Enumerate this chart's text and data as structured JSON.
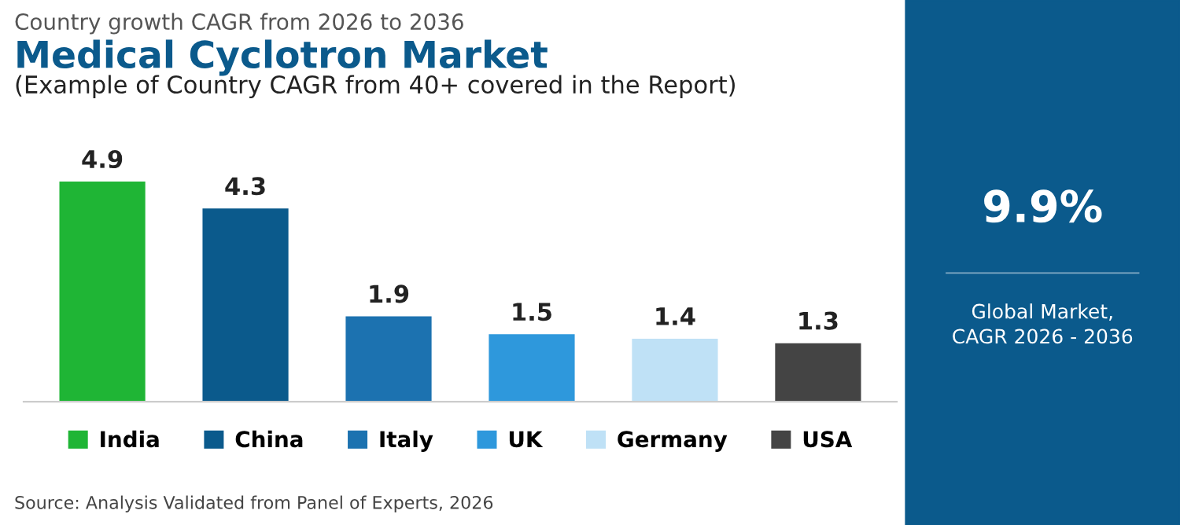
{
  "chart_data": [
    {
      "type": "bar",
      "title": "Medical Cyclotron Market",
      "subtitle": "(Example of Country CAGR from 40+ covered in the Report)",
      "categories": [
        null,
        null,
        null,
        null,
        null,
        null
      ],
      "series": [
        {
          "name": "India",
          "color": "#1fb535",
          "values": [
            4.9,
            null,
            null,
            null,
            null,
            null
          ]
        },
        {
          "name": "China",
          "color": "#0b5a8c",
          "values": [
            null,
            4.3,
            null,
            null,
            null,
            null
          ]
        },
        {
          "name": "Italy",
          "color": "#1c72b0",
          "values": [
            null,
            null,
            1.9,
            null,
            null,
            null
          ]
        },
        {
          "name": "UK",
          "color": "#2e98dc",
          "values": [
            null,
            null,
            null,
            1.5,
            null,
            null
          ]
        },
        {
          "name": "Germany",
          "color": "#bfe1f6",
          "values": [
            null,
            null,
            null,
            null,
            1.4,
            null
          ]
        },
        {
          "name": "USA",
          "color": "#444444",
          "values": [
            null,
            null,
            null,
            null,
            null,
            1.3
          ]
        }
      ],
      "stacked": true,
      "data_labels": true,
      "legend": "bottom",
      "tick_labels": false,
      "annotations": [
        "Country growth CAGR from 2026 to 2036",
        "Source: Analysis Validated from Panel of Experts, 2026"
      ]
    },
    {
      "type": "other",
      "title": "9.9%",
      "subtitle": "Global Market,\nCAGR 2026 - 2036",
      "color": "#0b5a8c"
    }
  ]
}
